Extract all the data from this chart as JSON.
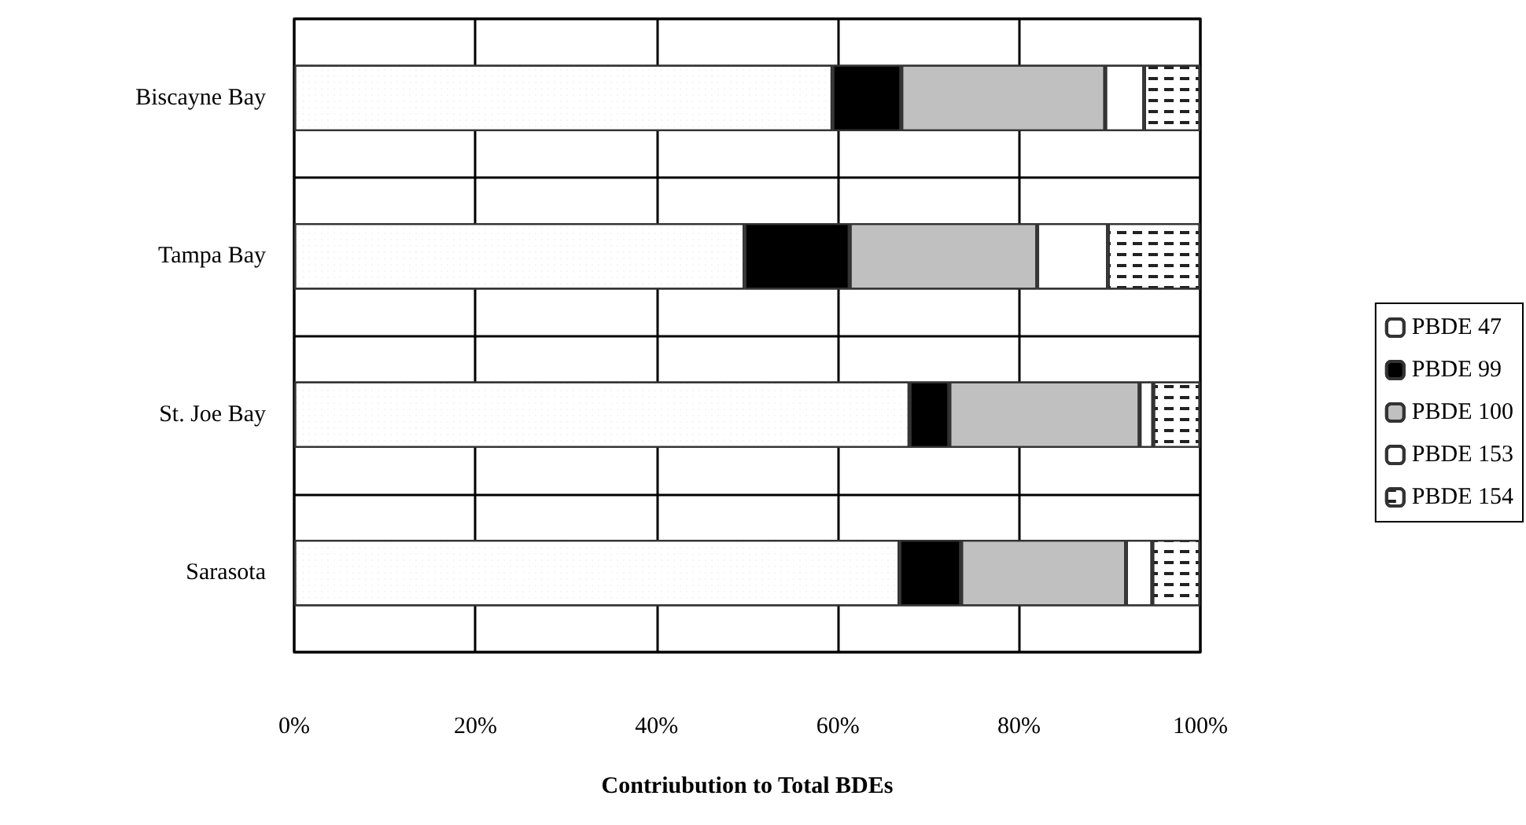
{
  "chart_data": {
    "type": "bar",
    "orientation": "horizontal",
    "stacked": true,
    "xlabel": "Contriubution to Total BDEs",
    "categories": [
      "Biscayne Bay",
      "Tampa Bay",
      "St. Joe Bay",
      "Sarasota"
    ],
    "series": [
      {
        "name": "PBDE 47",
        "color": "#ffffff",
        "values": [
          59.4,
          49.7,
          67.9,
          66.8
        ]
      },
      {
        "name": "PBDE 99",
        "color": "#000000",
        "values": [
          7.6,
          11.6,
          4.4,
          6.8
        ]
      },
      {
        "name": "PBDE 100",
        "color": "#c0c0c0",
        "values": [
          22.5,
          20.7,
          21.0,
          18.2
        ]
      },
      {
        "name": "PBDE 153",
        "color": "#ffffff",
        "values": [
          4.3,
          7.8,
          1.5,
          2.9
        ]
      },
      {
        "name": "PBDE 154",
        "color": "#ffffff",
        "values": [
          6.2,
          10.2,
          5.2,
          5.3
        ]
      }
    ],
    "xlim": [
      0,
      100
    ],
    "xticks": [
      {
        "value": 0,
        "label": "0%"
      },
      {
        "value": 20,
        "label": "20%"
      },
      {
        "value": 40,
        "label": "40%"
      },
      {
        "value": 60,
        "label": "60%"
      },
      {
        "value": 80,
        "label": "80%"
      },
      {
        "value": 100,
        "label": "100%"
      }
    ],
    "grid": true,
    "legend": "right"
  }
}
